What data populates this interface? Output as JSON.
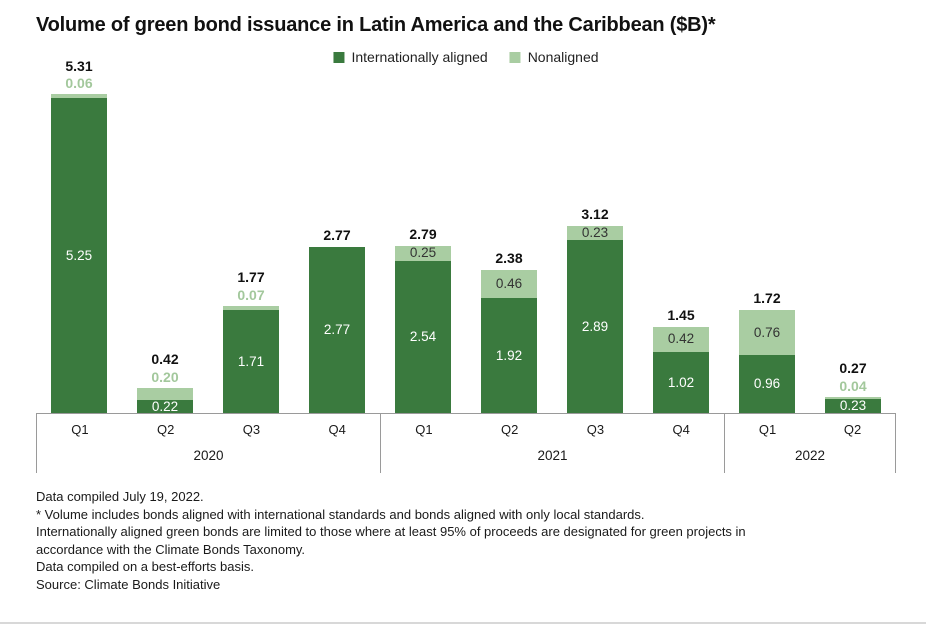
{
  "chart_data": {
    "type": "bar",
    "stacked": true,
    "title": "Volume of green bond issuance in Latin America and the Caribbean ($B)*",
    "unit": "$B",
    "categories": [
      "2020 Q1",
      "2020 Q2",
      "2020 Q3",
      "2020 Q4",
      "2021 Q1",
      "2021 Q2",
      "2021 Q3",
      "2021 Q4",
      "2022 Q1",
      "2022 Q2"
    ],
    "quarter_labels": [
      "Q1",
      "Q2",
      "Q3",
      "Q4",
      "Q1",
      "Q2",
      "Q3",
      "Q4",
      "Q1",
      "Q2"
    ],
    "groups": [
      {
        "year": "2020",
        "count": 4
      },
      {
        "year": "2021",
        "count": 4
      },
      {
        "year": "2022",
        "count": 2
      }
    ],
    "series": [
      {
        "name": "Internationally aligned",
        "color": "#3a7a3e",
        "values": [
          5.25,
          0.22,
          1.71,
          2.77,
          2.54,
          1.92,
          2.89,
          1.02,
          0.96,
          0.23
        ]
      },
      {
        "name": "Nonaligned",
        "color": "#a9cda2",
        "values": [
          0.06,
          0.2,
          0.07,
          null,
          0.25,
          0.46,
          0.23,
          0.42,
          0.76,
          0.04
        ]
      }
    ],
    "totals": [
      5.31,
      0.42,
      1.77,
      2.77,
      2.79,
      2.38,
      3.12,
      1.45,
      1.72,
      0.27
    ],
    "nonaligned_label_position": [
      "above",
      "above",
      "above",
      null,
      "inside",
      "inside",
      "inside",
      "inside",
      "inside",
      "above"
    ],
    "ylim": [
      0,
      5.5
    ],
    "grid": false,
    "legend_position": "top-center"
  },
  "legend": {
    "items": [
      {
        "label": "Internationally aligned",
        "color": "#3a7a3e"
      },
      {
        "label": "Nonaligned",
        "color": "#a9cda2"
      }
    ]
  },
  "colors": {
    "aligned": "#3a7a3e",
    "nonaligned": "#a9cda2",
    "nonaligned_above_label": "#a3c89c",
    "inside_dark_label": "#ffffff",
    "inside_light_label": "#333333",
    "axis_line": "#9a9a9a"
  },
  "footnotes": [
    "Data compiled July 19, 2022.",
    "* Volume includes bonds aligned with international standards and bonds aligned with only local standards.",
    "Internationally aligned green bonds are limited to those where at least 95% of proceeds are designated for green projects in",
    "accordance with the Climate Bonds Taxonomy.",
    "Data compiled on a best-efforts basis.",
    "Source: Climate Bonds Initiative"
  ]
}
